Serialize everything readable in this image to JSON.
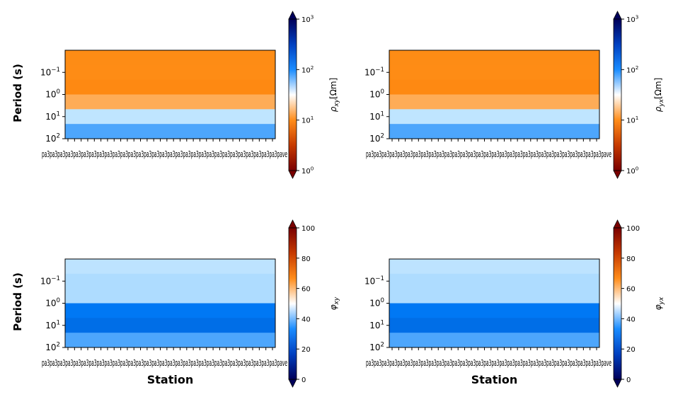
{
  "chart_data": [
    {
      "type": "heatmap",
      "title": "",
      "ylabel": "Period (s)",
      "xlabel": "",
      "yscale": "log",
      "y_tick_labels": [
        "10^{-1}",
        "10^{0}",
        "10^{1}",
        "10^{2}"
      ],
      "y_tick_values": [
        0.1,
        1,
        10,
        100
      ],
      "x_tick_labels": "overlapping station names (illegible)",
      "x_tick_count": 32,
      "row_colors": [
        "#fd8c15",
        "#fe8c15",
        "#fe8912",
        "#feac57",
        "#bfe5ff",
        "#4da6fc"
      ],
      "colorbar": {
        "label": "ρ_xy [Ωm]",
        "scale": "log",
        "range": [
          1,
          1000
        ],
        "tick_labels": [
          "10^{0}",
          "10^{1}",
          "10^{2}",
          "10^{3}"
        ],
        "colormap": "resistivity (dark red → orange → white → blue → navy)",
        "extend": "both"
      }
    },
    {
      "type": "heatmap",
      "title": "",
      "ylabel": "",
      "xlabel": "",
      "yscale": "log",
      "y_tick_labels": [
        "10^{-1}",
        "10^{0}",
        "10^{1}",
        "10^{2}"
      ],
      "y_tick_values": [
        0.1,
        1,
        10,
        100
      ],
      "x_tick_labels": "overlapping station names (illegible)",
      "x_tick_count": 32,
      "row_colors": [
        "#fd8c15",
        "#fe8c15",
        "#fe8912",
        "#feac57",
        "#bfe5ff",
        "#4da6fc"
      ],
      "colorbar": {
        "label": "ρ_yx [Ωm]",
        "scale": "log",
        "range": [
          1,
          1000
        ],
        "tick_labels": [
          "10^{0}",
          "10^{1}",
          "10^{2}",
          "10^{3}"
        ],
        "colormap": "resistivity (dark red → orange → white → blue → navy)",
        "extend": "both"
      }
    },
    {
      "type": "heatmap",
      "title": "",
      "ylabel": "Period (s)",
      "xlabel": "Station",
      "yscale": "log",
      "y_tick_labels": [
        "10^{-1}",
        "10^{0}",
        "10^{1}",
        "10^{2}"
      ],
      "y_tick_values": [
        0.1,
        1,
        10,
        100
      ],
      "x_tick_labels": "overlapping station names (illegible)",
      "x_tick_count": 32,
      "row_colors": [
        "#bde3ff",
        "#aedcff",
        "#aedcff",
        "#0078f4",
        "#006ee7",
        "#4da6fc"
      ],
      "colorbar": {
        "label": "φ_xy",
        "scale": "linear",
        "range": [
          0,
          100
        ],
        "tick_labels": [
          "0",
          "20",
          "40",
          "60",
          "80",
          "100"
        ],
        "colormap": "phase (navy → blue → white → orange → dark red)",
        "extend": "both"
      }
    },
    {
      "type": "heatmap",
      "title": "",
      "ylabel": "",
      "xlabel": "Station",
      "yscale": "log",
      "y_tick_labels": [
        "10^{-1}",
        "10^{0}",
        "10^{1}",
        "10^{2}"
      ],
      "y_tick_values": [
        0.1,
        1,
        10,
        100
      ],
      "x_tick_labels": "overlapping station names (illegible)",
      "x_tick_count": 32,
      "row_colors": [
        "#bde3ff",
        "#aedcff",
        "#aedcff",
        "#0078f4",
        "#006ee7",
        "#4da6fc"
      ],
      "colorbar": {
        "label": "φ_yx",
        "scale": "linear",
        "range": [
          0,
          100
        ],
        "tick_labels": [
          "0",
          "20",
          "40",
          "60",
          "80",
          "100"
        ],
        "colormap": "phase (navy → blue → white → orange → dark red)",
        "extend": "both"
      }
    }
  ],
  "station_label_text": "pa3pa3pa3pa3pa3pa3pa3pa3pa3pa3pa3pa3pa3pa3pa3pa3pa3pa3pa3pa3pa3pa3pa3pa3pa3pa3pa3pa3pa3pa3pave",
  "colors": {
    "res_scale": [
      "#7a0000",
      "#c63a00",
      "#ff8c1a",
      "#ffffff",
      "#1a8cff",
      "#0040c0",
      "#00005a"
    ],
    "phase_scale": [
      "#00005a",
      "#0040c0",
      "#1a8cff",
      "#ffffff",
      "#ff8c1a",
      "#c63a00",
      "#7a0000"
    ]
  }
}
